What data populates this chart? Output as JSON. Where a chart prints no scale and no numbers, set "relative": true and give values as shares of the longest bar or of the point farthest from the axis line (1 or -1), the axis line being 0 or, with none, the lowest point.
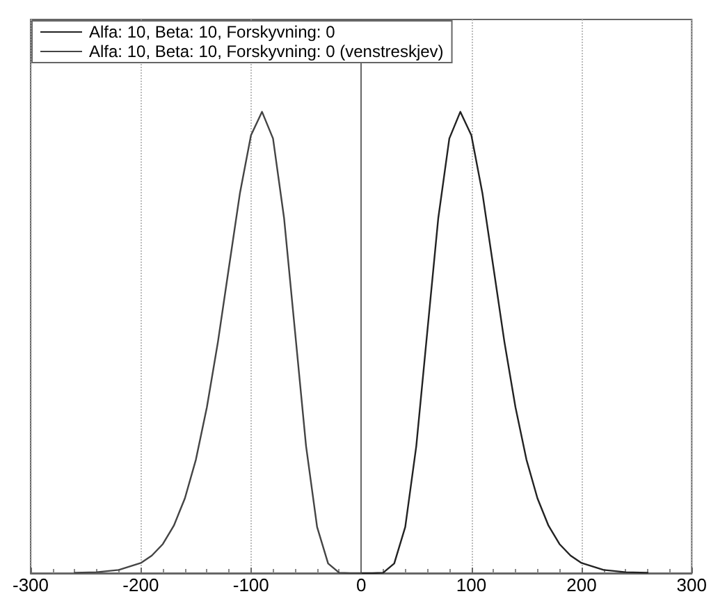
{
  "chart_data": {
    "type": "line",
    "relative": true,
    "xlim": [
      -300,
      300
    ],
    "xticks": [
      -300,
      -200,
      -100,
      0,
      100,
      200,
      300
    ],
    "grid": "x",
    "legend": "top left",
    "marker": "none",
    "line_style": "solid",
    "series": [
      {
        "name": "Alfa: 10, Beta: 10, Forskyvning: 0",
        "color": "#222222",
        "x": [
          0,
          10,
          20,
          30,
          40,
          50,
          60,
          70,
          80,
          90,
          100,
          110,
          120,
          130,
          140,
          150,
          160,
          170,
          180,
          190,
          200,
          220,
          240,
          260
        ],
        "values": [
          0,
          0,
          0.001,
          0.021,
          0.1,
          0.275,
          0.523,
          0.77,
          0.942,
          1,
          0.949,
          0.824,
          0.663,
          0.501,
          0.36,
          0.246,
          0.162,
          0.103,
          0.063,
          0.038,
          0.022,
          0.007,
          0.002,
          0.001
        ]
      },
      {
        "name": "Alfa: 10, Beta: 10, Forskyvning: 0 (venstreskjev)",
        "color": "#444444",
        "x": [
          0,
          -10,
          -20,
          -30,
          -40,
          -50,
          -60,
          -70,
          -80,
          -90,
          -100,
          -110,
          -120,
          -130,
          -140,
          -150,
          -160,
          -170,
          -180,
          -190,
          -200,
          -220,
          -240,
          -260
        ],
        "values": [
          0,
          0,
          0.001,
          0.021,
          0.1,
          0.275,
          0.523,
          0.77,
          0.942,
          1,
          0.949,
          0.824,
          0.663,
          0.501,
          0.36,
          0.246,
          0.162,
          0.103,
          0.063,
          0.038,
          0.022,
          0.007,
          0.002,
          0.001
        ]
      }
    ]
  }
}
